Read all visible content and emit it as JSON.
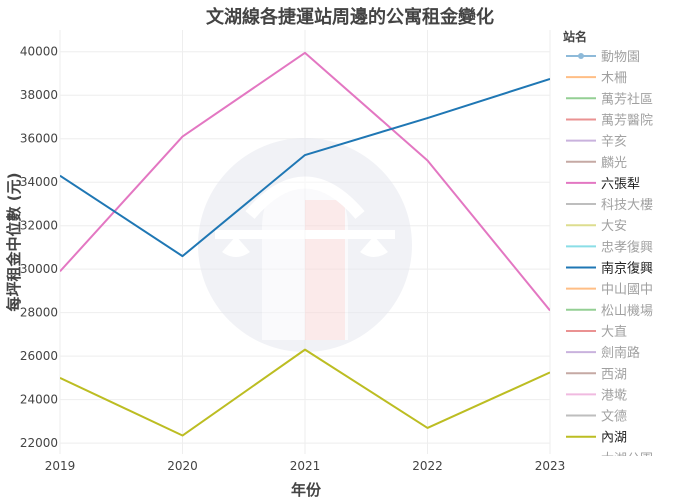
{
  "chart_data": {
    "type": "line",
    "title": "文湖線各捷運站周邊的公寓租金變化",
    "xlabel": "年份",
    "ylabel": "每坪租金中位數 (元)",
    "x": [
      2019,
      2020,
      2021,
      2022,
      2023
    ],
    "xlim": [
      2019,
      2023
    ],
    "ylim": [
      21500,
      41000
    ],
    "yticks": [
      22000,
      24000,
      26000,
      28000,
      30000,
      32000,
      34000,
      36000,
      38000,
      40000
    ],
    "grid": true,
    "legend_title": "站名",
    "legend_position": "right",
    "series": [
      {
        "name": "動物園",
        "color": "#1f77b4",
        "visible": false,
        "marker": true
      },
      {
        "name": "木柵",
        "color": "#ff7f0e",
        "visible": false
      },
      {
        "name": "萬芳社區",
        "color": "#2ca02c",
        "visible": false
      },
      {
        "name": "萬芳醫院",
        "color": "#d62728",
        "visible": false
      },
      {
        "name": "辛亥",
        "color": "#9467bd",
        "visible": false
      },
      {
        "name": "麟光",
        "color": "#8c564b",
        "visible": false
      },
      {
        "name": "六張犁",
        "color": "#e377c2",
        "visible": true,
        "values": [
          29900,
          36100,
          39950,
          35000,
          28100
        ]
      },
      {
        "name": "科技大樓",
        "color": "#7f7f7f",
        "visible": false
      },
      {
        "name": "大安",
        "color": "#bcbd22",
        "visible": false
      },
      {
        "name": "忠孝復興",
        "color": "#17becf",
        "visible": false
      },
      {
        "name": "南京復興",
        "color": "#1f77b4",
        "visible": true,
        "values": [
          34300,
          30600,
          35250,
          36950,
          38750
        ]
      },
      {
        "name": "中山國中",
        "color": "#ff7f0e",
        "visible": false
      },
      {
        "name": "松山機場",
        "color": "#2ca02c",
        "visible": false
      },
      {
        "name": "大直",
        "color": "#d62728",
        "visible": false
      },
      {
        "name": "劍南路",
        "color": "#9467bd",
        "visible": false
      },
      {
        "name": "西湖",
        "color": "#8c564b",
        "visible": false
      },
      {
        "name": "港墘",
        "color": "#e377c2",
        "visible": false
      },
      {
        "name": "文德",
        "color": "#7f7f7f",
        "visible": false
      },
      {
        "name": "內湖",
        "color": "#bcbd22",
        "visible": true,
        "values": [
          25000,
          22350,
          26300,
          22700,
          25250
        ]
      },
      {
        "name": "大湖公園",
        "color": "#17becf",
        "visible": false
      }
    ]
  }
}
